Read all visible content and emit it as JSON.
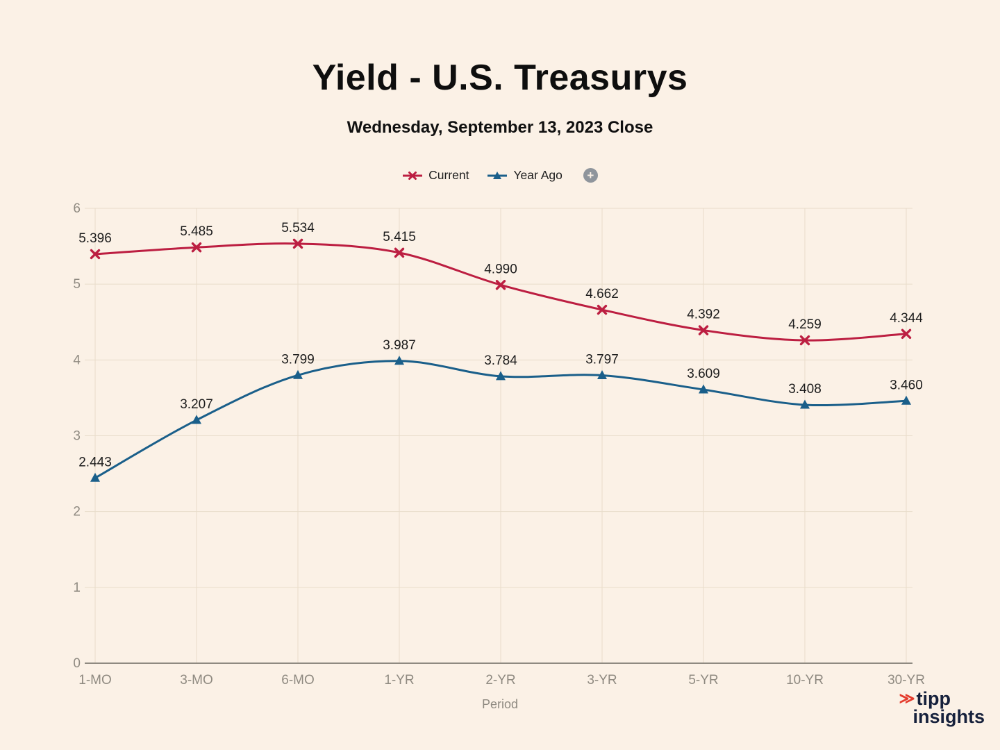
{
  "header": {
    "title": "Yield - U.S. Treasurys",
    "subtitle": "Wednesday, September 13, 2023 Close"
  },
  "legend": {
    "add_label": "+"
  },
  "chart_data": {
    "type": "line",
    "categories": [
      "1-MO",
      "3-MO",
      "6-MO",
      "1-YR",
      "2-YR",
      "3-YR",
      "5-YR",
      "10-YR",
      "30-YR"
    ],
    "series": [
      {
        "name": "Current",
        "marker": "x",
        "color": "#bc1e41",
        "values": [
          5.396,
          5.485,
          5.534,
          5.415,
          4.99,
          4.662,
          4.392,
          4.259,
          4.344
        ]
      },
      {
        "name": "Year Ago",
        "marker": "triangle",
        "color": "#1a5f8a",
        "values": [
          2.443,
          3.207,
          3.799,
          3.987,
          3.784,
          3.797,
          3.609,
          3.408,
          3.46
        ]
      }
    ],
    "xlabel": "Period",
    "ylabel": "",
    "ylim": [
      0,
      6
    ],
    "yticks": [
      0,
      1,
      2,
      3,
      4,
      5,
      6
    ],
    "grid": true,
    "legend_position": "top",
    "colors": {
      "background": "#fbf1e6",
      "gridline": "#e8dcca",
      "axis": "#8f8a81",
      "tick_label": "#8f8a81",
      "data_label": "#1c1c1c"
    }
  },
  "footer": {
    "brand_icon": "≫",
    "brand_top": "tipp",
    "brand_bottom": "insights"
  }
}
